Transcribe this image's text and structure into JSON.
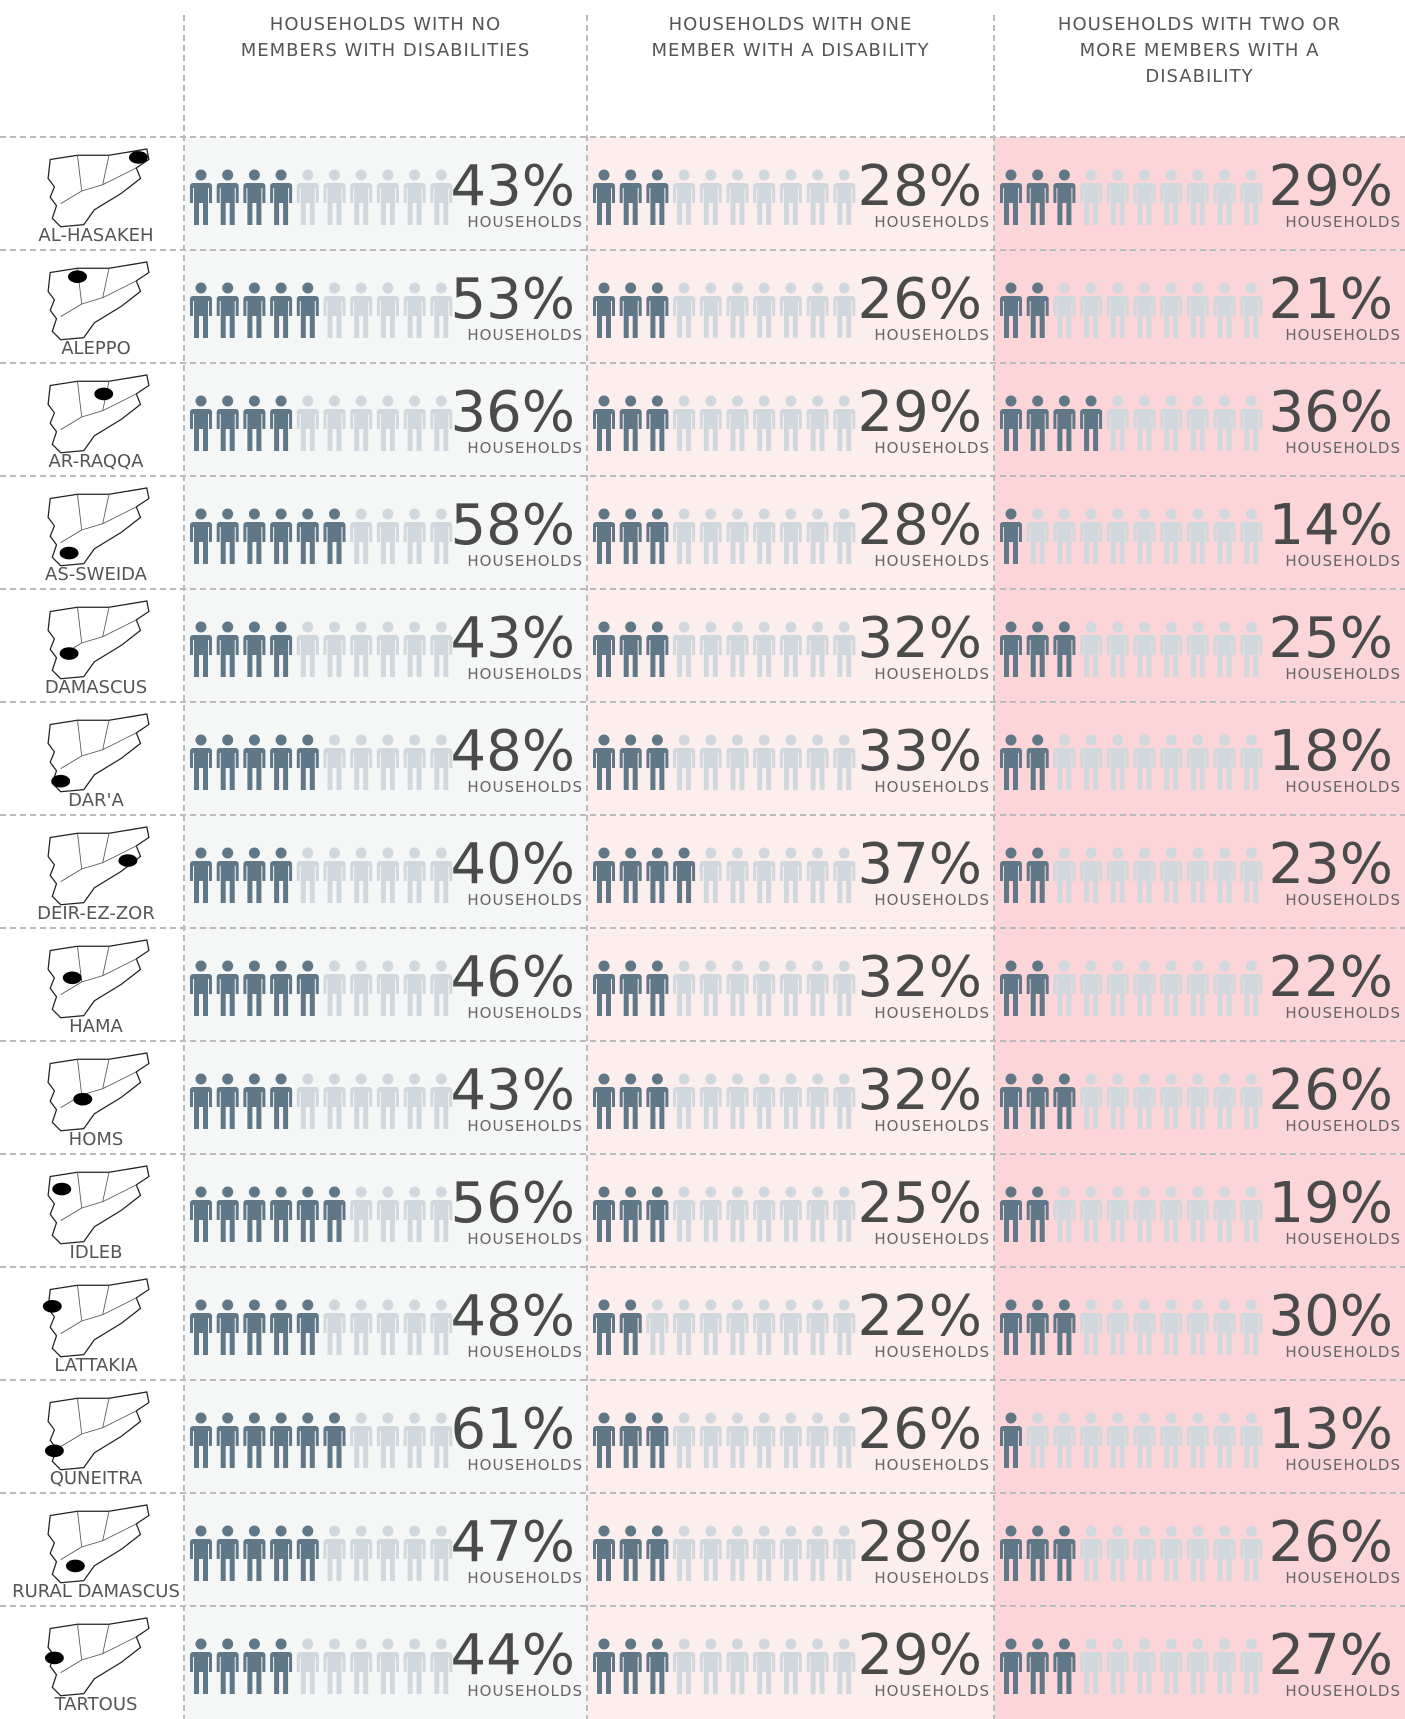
{
  "chart_data": {
    "type": "pictogram",
    "unit_label": "HOUSEHOLDS",
    "categories": [
      "AL-HASAKEH",
      "ALEPPO",
      "AR-RAQQA",
      "AS-SWEIDA",
      "DAMASCUS",
      "DAR'A",
      "DEIR-EZ-ZOR",
      "HAMA",
      "HOMS",
      "IDLEB",
      "LATTAKIA",
      "QUNEITRA",
      "RURAL DAMASCUS",
      "TARTOUS"
    ],
    "ylim": [
      0,
      100
    ],
    "series": [
      {
        "name": "HOUSEHOLDS WITH NO MEMBERS WITH DISABILITIES",
        "color": "#5f7787",
        "values": [
          43,
          53,
          36,
          58,
          43,
          48,
          40,
          46,
          43,
          56,
          48,
          61,
          47,
          44
        ],
        "value_labels": [
          "43%",
          "53%",
          "36%",
          "58%",
          "43%",
          "48%",
          "40%",
          "46%",
          "43%",
          "56%",
          "48%",
          "61%",
          "47%",
          "44%"
        ]
      },
      {
        "name": "HOUSEHOLDS WITH ONE MEMBER WITH A DISABILITY",
        "color": "#5f7787",
        "values": [
          28,
          26,
          29,
          28,
          32,
          33,
          37,
          32,
          32,
          25,
          22,
          26,
          28,
          29
        ],
        "value_labels": [
          "28%",
          "26%",
          "29%",
          "28%",
          "32%",
          "33%",
          "37%",
          "32%",
          "32%",
          "25%",
          "22%",
          "26%",
          "28%",
          "29%"
        ]
      },
      {
        "name": "HOUSEHOLDS WITH TWO OR MORE MEMBERS WITH A DISABILITY",
        "color": "#5f7787",
        "values": [
          29,
          21,
          36,
          14,
          25,
          18,
          23,
          22,
          26,
          19,
          30,
          13,
          26,
          27
        ],
        "value_labels": [
          "29%",
          "21%",
          "36%",
          "14%",
          "25%",
          "18%",
          "23%",
          "22%",
          "26%",
          "19%",
          "30%",
          "13%",
          "26%",
          "27%"
        ]
      }
    ]
  }
}
